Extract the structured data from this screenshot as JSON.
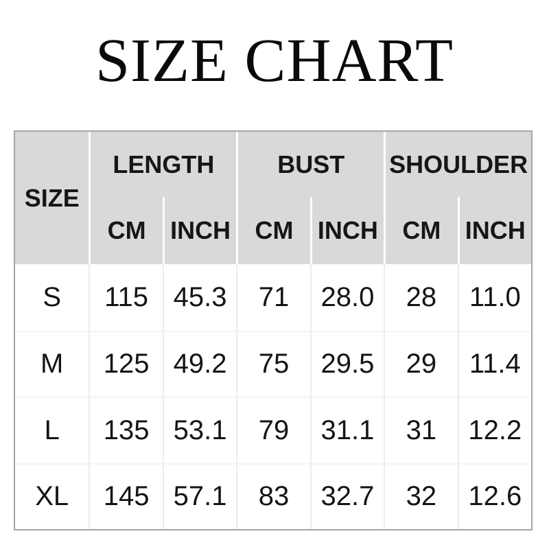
{
  "page": {
    "title": "SIZE CHART"
  },
  "table": {
    "corner_header": "SIZE",
    "groups": [
      {
        "label": "LENGTH"
      },
      {
        "label": "BUST"
      },
      {
        "label": "SHOULDER"
      }
    ],
    "unit_headers": [
      "CM",
      "INCH",
      "CM",
      "INCH",
      "CM",
      "INCH"
    ],
    "rows": [
      {
        "size": "S",
        "cells": [
          "115",
          "45.3",
          "71",
          "28.0",
          "28",
          "11.0"
        ]
      },
      {
        "size": "M",
        "cells": [
          "125",
          "49.2",
          "75",
          "29.5",
          "29",
          "11.4"
        ]
      },
      {
        "size": "L",
        "cells": [
          "135",
          "53.1",
          "79",
          "31.1",
          "31",
          "12.2"
        ]
      },
      {
        "size": "XL",
        "cells": [
          "145",
          "57.1",
          "83",
          "32.7",
          "32",
          "12.6"
        ]
      }
    ],
    "colors": {
      "header_bg": "#d9d9d9",
      "outer_border": "#a6a6a6",
      "header_separator": "#ffffff",
      "body_grid_line": "#ececec",
      "text": "#111111"
    }
  },
  "chart_data": {
    "type": "table",
    "title": "SIZE CHART",
    "column_groups": [
      "SIZE",
      "LENGTH",
      "BUST",
      "SHOULDER"
    ],
    "columns": [
      "SIZE",
      "LENGTH CM",
      "LENGTH INCH",
      "BUST CM",
      "BUST INCH",
      "SHOULDER CM",
      "SHOULDER INCH"
    ],
    "rows": [
      [
        "S",
        115,
        45.3,
        71,
        28.0,
        28,
        11.0
      ],
      [
        "M",
        125,
        49.2,
        75,
        29.5,
        29,
        11.4
      ],
      [
        "L",
        135,
        53.1,
        79,
        31.1,
        31,
        12.2
      ],
      [
        "XL",
        145,
        57.1,
        83,
        32.7,
        32,
        12.6
      ]
    ]
  }
}
